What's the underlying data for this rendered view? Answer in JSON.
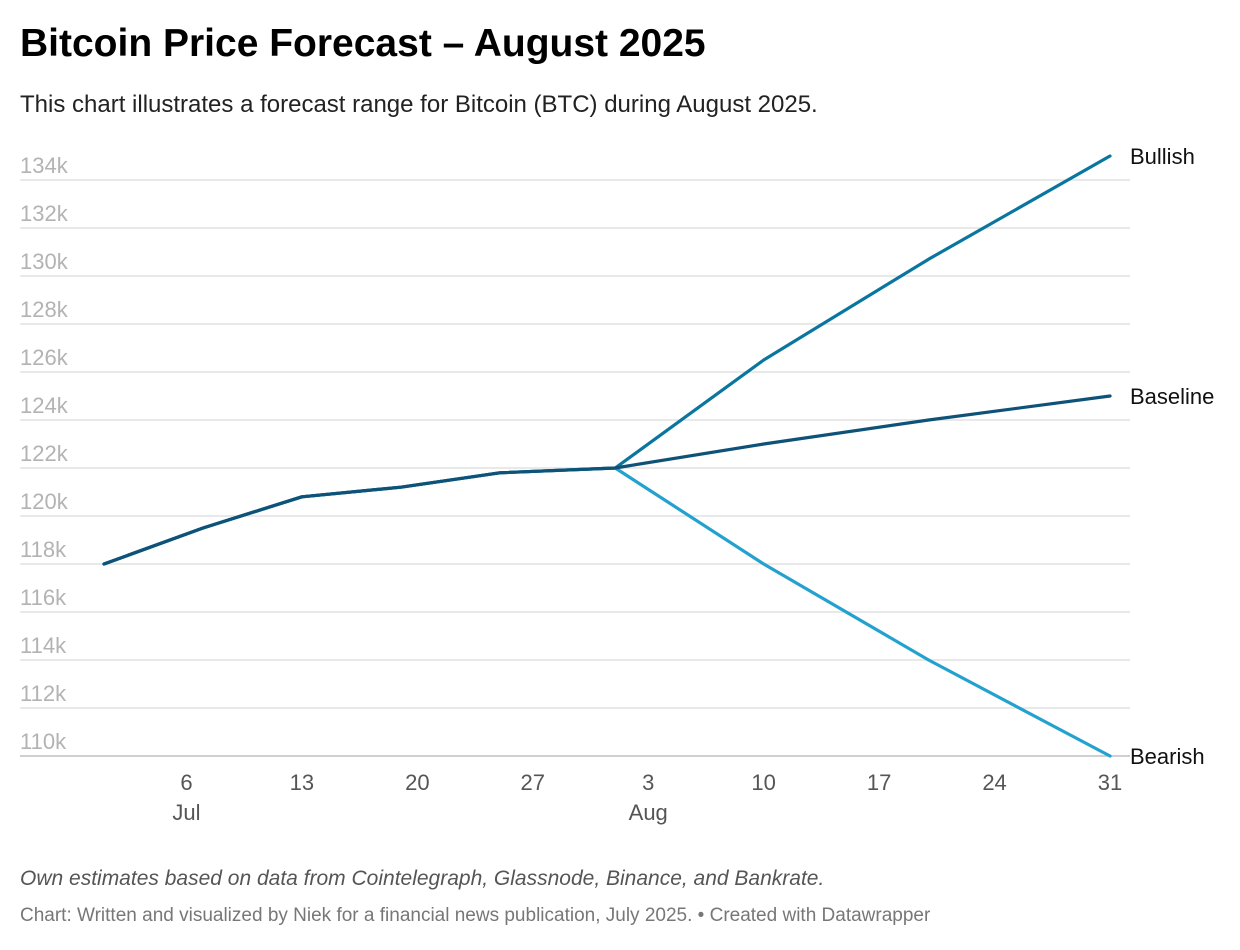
{
  "header": {
    "title": "Bitcoin Price Forecast – August 2025",
    "subtitle": "This chart illustrates a forecast range for Bitcoin (BTC) during August 2025."
  },
  "notes": {
    "source": "Own estimates based on data from Cointelegraph, Glassnode, Binance, and Bankrate.",
    "credit": "Chart: Written and visualized by Niek for a financial news publication, July 2025. • Created with Datawrapper"
  },
  "chart_data": {
    "type": "line",
    "title": "Bitcoin Price Forecast – August 2025",
    "xlabel": "",
    "ylabel": "",
    "x_unit": "day of year 2025",
    "xlim": [
      182,
      243
    ],
    "ylim": [
      109000,
      135000
    ],
    "grid": true,
    "yticks": [
      {
        "value": 110000,
        "label": "110k"
      },
      {
        "value": 112000,
        "label": "112k"
      },
      {
        "value": 114000,
        "label": "114k"
      },
      {
        "value": 116000,
        "label": "116k"
      },
      {
        "value": 118000,
        "label": "118k"
      },
      {
        "value": 120000,
        "label": "120k"
      },
      {
        "value": 122000,
        "label": "122k"
      },
      {
        "value": 124000,
        "label": "124k"
      },
      {
        "value": 126000,
        "label": "126k"
      },
      {
        "value": 128000,
        "label": "128k"
      },
      {
        "value": 130000,
        "label": "130k"
      },
      {
        "value": 132000,
        "label": "132k"
      },
      {
        "value": 134000,
        "label": "134k"
      }
    ],
    "xticks": [
      {
        "value": 187,
        "label": "6",
        "sublabel": "Jul"
      },
      {
        "value": 194,
        "label": "13",
        "sublabel": ""
      },
      {
        "value": 201,
        "label": "20",
        "sublabel": ""
      },
      {
        "value": 208,
        "label": "27",
        "sublabel": ""
      },
      {
        "value": 215,
        "label": "3",
        "sublabel": "Aug"
      },
      {
        "value": 222,
        "label": "10",
        "sublabel": ""
      },
      {
        "value": 229,
        "label": "17",
        "sublabel": ""
      },
      {
        "value": 236,
        "label": "24",
        "sublabel": ""
      },
      {
        "value": 243,
        "label": "31",
        "sublabel": ""
      }
    ],
    "series": [
      {
        "name": "Bearish",
        "color": "#23a1cf",
        "x": [
          182,
          188,
          194,
          200,
          206,
          213,
          222,
          232,
          243
        ],
        "values": [
          118000,
          119500,
          120800,
          121200,
          121800,
          122000,
          118000,
          114000,
          110000
        ]
      },
      {
        "name": "Bullish",
        "color": "#0a76a0",
        "x": [
          182,
          188,
          194,
          200,
          206,
          213,
          222,
          232,
          243
        ],
        "values": [
          118000,
          119500,
          120800,
          121200,
          121800,
          122000,
          126500,
          130700,
          135000
        ]
      },
      {
        "name": "Baseline",
        "color": "#0f5278",
        "x": [
          182,
          188,
          194,
          200,
          206,
          213,
          222,
          232,
          243
        ],
        "values": [
          118000,
          119500,
          120800,
          121200,
          121800,
          122000,
          123000,
          124000,
          125000
        ]
      }
    ]
  }
}
